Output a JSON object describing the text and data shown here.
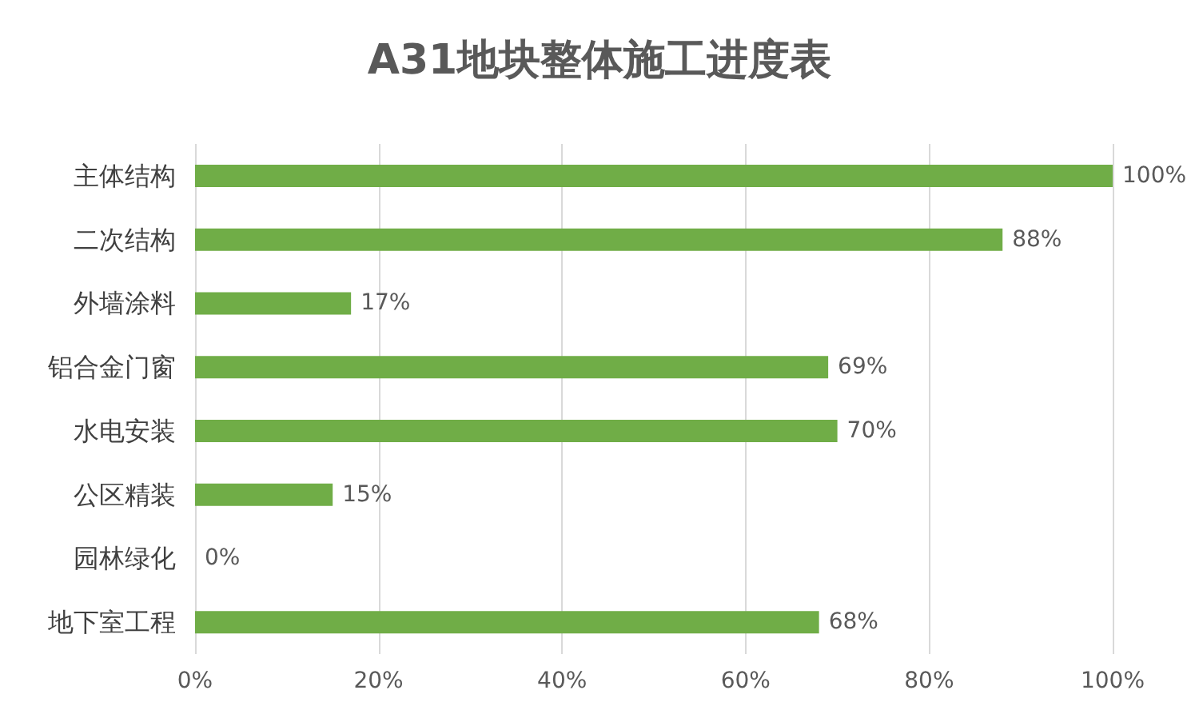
{
  "chart_data": {
    "type": "bar",
    "orientation": "horizontal",
    "title": "A31地块整体施工进度表",
    "categories": [
      "主体结构",
      "二次结构",
      "外墙涂料",
      "铝合金门窗",
      "水电安装",
      "公区精装",
      "园林绿化",
      "地下室工程"
    ],
    "values": [
      100,
      88,
      17,
      69,
      70,
      15,
      0,
      68
    ],
    "value_labels": [
      "100%",
      "88%",
      "17%",
      "69%",
      "70%",
      "15%",
      "0%",
      "68%"
    ],
    "color": "#70ad47",
    "xlim": [
      0,
      100
    ],
    "xticks": [
      {
        "value": 0,
        "label": "0%"
      },
      {
        "value": 20,
        "label": "20%"
      },
      {
        "value": 40,
        "label": "40%"
      },
      {
        "value": 60,
        "label": "60%"
      },
      {
        "value": 80,
        "label": "80%"
      },
      {
        "value": 100,
        "label": "100%"
      }
    ],
    "grid": "x"
  }
}
